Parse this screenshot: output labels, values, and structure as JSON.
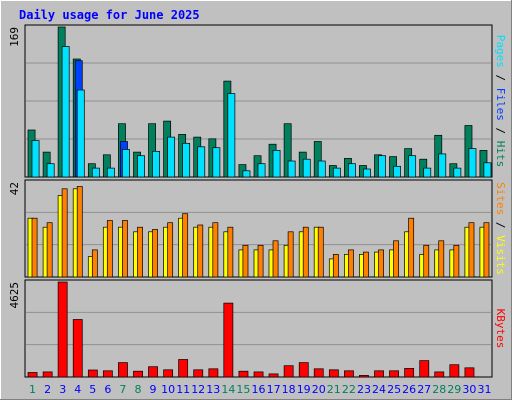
{
  "chart_data": {
    "type": "bar",
    "title": "Daily usage for June 2025",
    "categories": [
      "1",
      "2",
      "3",
      "4",
      "5",
      "6",
      "7",
      "8",
      "9",
      "10",
      "11",
      "12",
      "13",
      "14",
      "15",
      "16",
      "17",
      "18",
      "19",
      "20",
      "21",
      "22",
      "23",
      "24",
      "25",
      "26",
      "27",
      "28",
      "29",
      "30",
      "31"
    ],
    "weekend_days": [
      "1",
      "7",
      "8",
      "14",
      "15",
      "21",
      "22",
      "28",
      "29"
    ],
    "panels": [
      {
        "id": "hits_files_pages",
        "ymax_label": "169",
        "ylim": [
          0,
          169
        ],
        "side_label": [
          "Pages",
          " / ",
          "Files",
          " / ",
          "Hits"
        ],
        "series": [
          {
            "name": "Hits",
            "values": [
              53,
              28,
              169,
              133,
              15,
              25,
              60,
              28,
              60,
              63,
              48,
              45,
              43,
              108,
              14,
              24,
              37,
              60,
              28,
              40,
              13,
              21,
              13,
              25,
              23,
              32,
              20,
              47,
              15,
              58,
              30
            ]
          },
          {
            "name": "Files",
            "values": [
              0,
              0,
              0,
              131,
              0,
              0,
              40,
              0,
              0,
              0,
              0,
              0,
              0,
              0,
              0,
              0,
              0,
              0,
              0,
              0,
              0,
              0,
              0,
              0,
              0,
              0,
              0,
              0,
              0,
              0,
              0
            ]
          },
          {
            "name": "Pages",
            "values": [
              41,
              15,
              147,
              98,
              10,
              10,
              31,
              24,
              29,
              45,
              38,
              34,
              33,
              94,
              7,
              15,
              30,
              18,
              20,
              18,
              10,
              15,
              9,
              24,
              12,
              24,
              10,
              26,
              10,
              32,
              16
            ]
          }
        ]
      },
      {
        "id": "visits_sites",
        "ymax_label": "42",
        "ylim": [
          0,
          42
        ],
        "side_label": [
          "Sites",
          " / ",
          "Visits"
        ],
        "series": [
          {
            "name": "Visits",
            "values": [
              26,
              22,
              36,
              39,
              9,
              22,
              22,
              20,
              20,
              22,
              26,
              22,
              22,
              20,
              12,
              12,
              12,
              14,
              20,
              22,
              8,
              10,
              10,
              11,
              12,
              20,
              10,
              12,
              12,
              22,
              22
            ]
          },
          {
            "name": "Sites",
            "values": [
              26,
              24,
              39,
              40,
              12,
              25,
              25,
              22,
              21,
              24,
              28,
              23,
              24,
              22,
              14,
              14,
              16,
              20,
              22,
              22,
              10,
              12,
              11,
              12,
              16,
              26,
              14,
              16,
              14,
              24,
              24
            ]
          }
        ]
      },
      {
        "id": "kbytes",
        "ymax_label": "4625",
        "ylim": [
          0,
          4625
        ],
        "side_label": [
          "KBytes"
        ],
        "series": [
          {
            "name": "KBytes",
            "values": [
              220,
              250,
              4625,
              2800,
              340,
              300,
              700,
              280,
              500,
              350,
              850,
              350,
              400,
              3600,
              280,
              250,
              150,
              550,
              700,
              400,
              350,
              300,
              80,
              300,
              300,
              420,
              800,
              250,
              600,
              450,
              0
            ]
          }
        ]
      }
    ]
  },
  "colors": {
    "background": "#c0c0c0",
    "plot_bg": "#c0c0c0",
    "title": "#0000ff",
    "gridline": "#909090",
    "hits": "#00805c",
    "files": "#0040ff",
    "pages": "#00e0ff",
    "visits": "#ffff00",
    "sites": "#ff8000",
    "kbytes": "#ff0000",
    "weekend_label": "#00805c",
    "weekday_label": "#0000ff",
    "panel_border": "#000000"
  }
}
